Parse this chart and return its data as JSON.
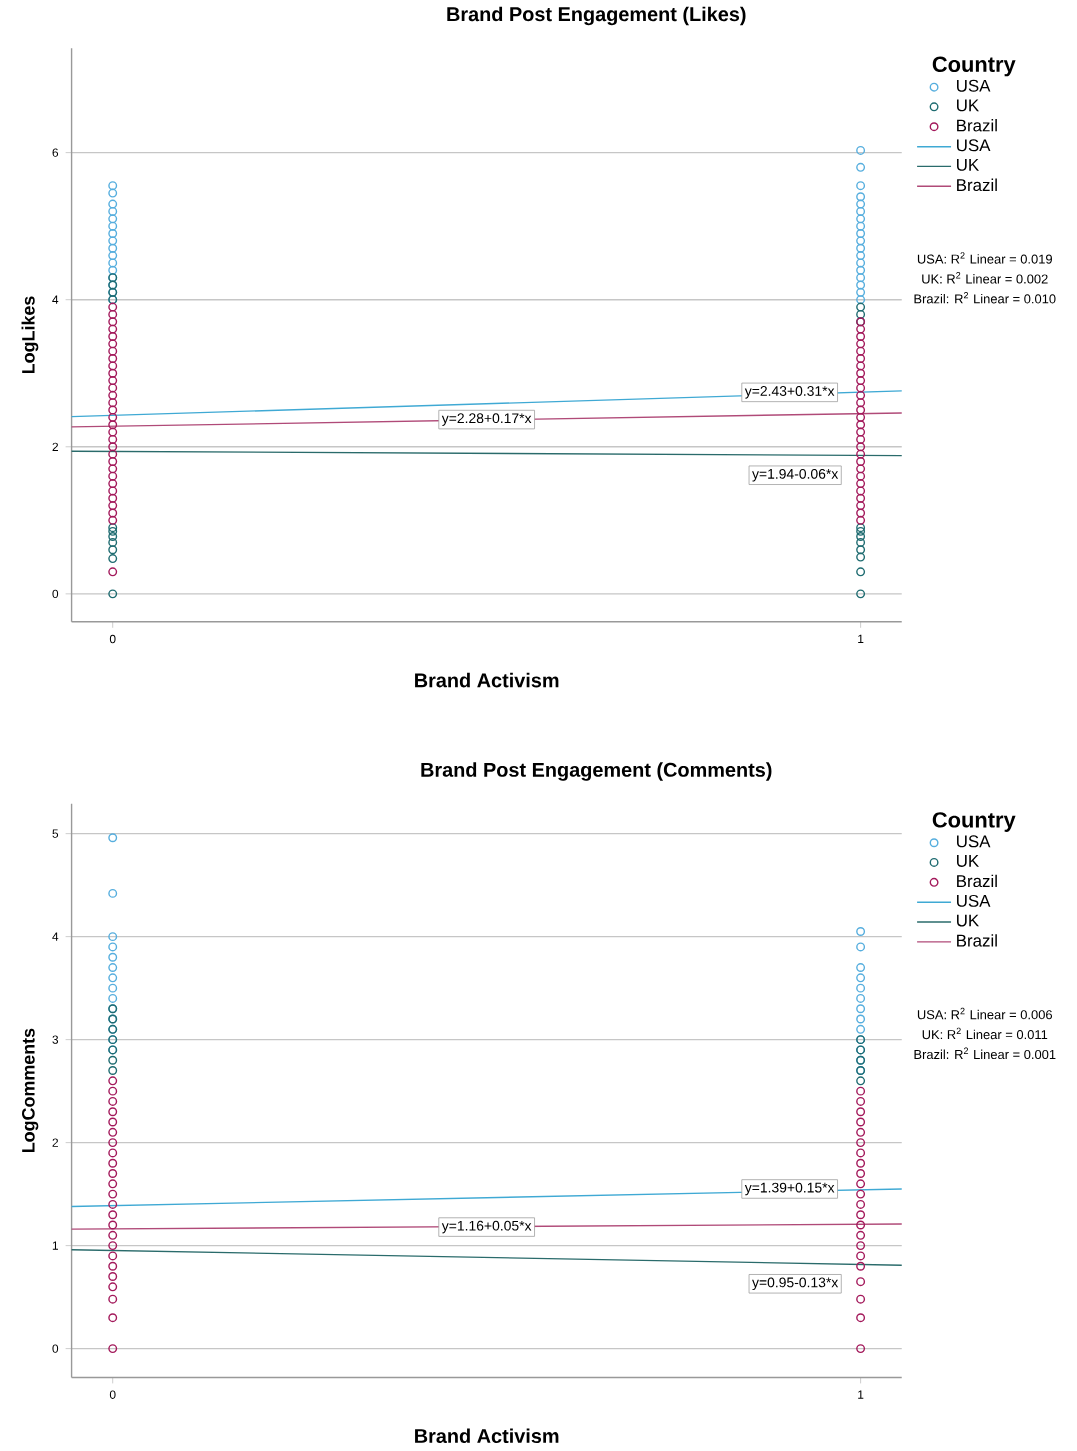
{
  "chart_data": [
    {
      "type": "scatter",
      "title": "Brand Post Engagement (Likes)",
      "xlabel": "Brand Activism",
      "ylabel": "LogLikes",
      "legend_title": "Country",
      "xlim": [
        -0.055,
        1.055
      ],
      "xticks": [
        0,
        1
      ],
      "ylim": [
        -0.38,
        7.42
      ],
      "yticks": [
        0,
        2,
        4,
        6
      ],
      "grid": "y",
      "legend": "right",
      "series": [
        {
          "name": "USA",
          "color": "#56aede",
          "x": [
            0,
            0,
            0,
            0,
            0,
            0,
            0,
            0,
            0,
            0,
            0,
            0,
            0,
            0,
            0,
            0,
            1,
            1,
            1,
            1,
            1,
            1,
            1,
            1,
            1,
            1,
            1,
            1,
            1,
            1,
            1,
            1,
            1,
            1
          ],
          "values": [
            5.55,
            5.45,
            5.3,
            5.2,
            5.1,
            5.0,
            4.9,
            4.8,
            4.7,
            4.6,
            4.5,
            4.4,
            4.3,
            4.2,
            4.1,
            4.0,
            6.03,
            5.8,
            5.55,
            5.4,
            5.3,
            5.2,
            5.1,
            5.0,
            4.9,
            4.8,
            4.7,
            4.6,
            4.5,
            4.4,
            4.3,
            4.2,
            4.1,
            4.0
          ]
        },
        {
          "name": "UK",
          "color": "#1e6b70",
          "x": [
            0,
            0,
            0,
            0,
            0,
            0,
            0,
            0,
            0,
            0,
            0,
            1,
            1,
            1,
            1,
            1,
            1,
            1,
            1,
            1,
            1,
            1
          ],
          "values": [
            4.3,
            4.2,
            4.1,
            4.0,
            0.9,
            0.85,
            0.78,
            0.7,
            0.6,
            0.48,
            0,
            3.9,
            3.8,
            3.7,
            0.9,
            0.85,
            0.78,
            0.7,
            0.6,
            0.5,
            0.3,
            0
          ]
        },
        {
          "name": "Brazil",
          "color": "#a3195b",
          "x": [
            0,
            0,
            0,
            0,
            0,
            0,
            0,
            0,
            0,
            0,
            0,
            0,
            0,
            0,
            0,
            0,
            0,
            0,
            0,
            0,
            0,
            0,
            0,
            0,
            0,
            0,
            0,
            0,
            0,
            0,
            0,
            1,
            1,
            1,
            1,
            1,
            1,
            1,
            1,
            1,
            1,
            1,
            1,
            1,
            1,
            1,
            1,
            1,
            1,
            1,
            1,
            1,
            1,
            1,
            1,
            1,
            1,
            1,
            1
          ],
          "values": [
            3.9,
            3.8,
            3.7,
            3.6,
            3.5,
            3.4,
            3.3,
            3.2,
            3.1,
            3.0,
            2.9,
            2.8,
            2.7,
            2.6,
            2.5,
            2.4,
            2.3,
            2.2,
            2.1,
            2.0,
            1.9,
            1.8,
            1.7,
            1.6,
            1.5,
            1.4,
            1.3,
            1.2,
            1.1,
            1.0,
            0.3,
            3.7,
            3.6,
            3.5,
            3.4,
            3.3,
            3.2,
            3.1,
            3.0,
            2.9,
            2.8,
            2.7,
            2.6,
            2.5,
            2.4,
            2.3,
            2.2,
            2.1,
            2.0,
            1.9,
            1.8,
            1.7,
            1.6,
            1.5,
            1.4,
            1.3,
            1.2,
            1.1,
            1.0
          ]
        },
        {
          "type": "line",
          "name": "USA",
          "color": "#3fa9d4",
          "x": [
            -0.055,
            1.055
          ],
          "values": [
            2.41,
            2.76
          ]
        },
        {
          "type": "line",
          "name": "UK",
          "color": "#2a6b6b",
          "x": [
            -0.055,
            1.055
          ],
          "values": [
            1.94,
            1.88
          ]
        },
        {
          "type": "line",
          "name": "Brazil",
          "color": "#b04a78",
          "x": [
            -0.055,
            1.055
          ],
          "values": [
            2.27,
            2.46
          ]
        }
      ],
      "annotations": [
        {
          "text": "y=2.43+0.31*x",
          "x": 0.975,
          "y": 2.74
        },
        {
          "text": "y=2.28+0.17*x",
          "x": 0.5,
          "y": 2.37
        },
        {
          "text": "y=1.94-0.06*x",
          "x": 0.98,
          "y": 1.88
        },
        "USA: R$^{2}$ Linear = 0.019",
        "UK: R$^{2}$ Linear = 0.002",
        "Brazil: R$^{2}$ Linear = 0.010"
      ]
    },
    {
      "type": "scatter",
      "title": "Brand Post Engagement (Comments)",
      "xlabel": "Brand Activism",
      "ylabel": "LogComments",
      "legend_title": "Country",
      "xlim": [
        -0.055,
        1.055
      ],
      "xticks": [
        0,
        1
      ],
      "ylim": [
        -0.28,
        5.29
      ],
      "yticks": [
        0,
        1,
        2,
        3,
        4,
        5
      ],
      "grid": "y",
      "legend": "right",
      "series": [
        {
          "name": "USA",
          "color": "#56aede",
          "x": [
            0,
            0,
            0,
            0,
            0,
            0,
            0,
            0,
            0,
            0,
            0,
            0,
            0,
            0,
            1,
            1,
            1,
            1,
            1,
            1,
            1,
            1,
            1,
            1,
            1,
            1,
            1
          ],
          "values": [
            4.96,
            4.42,
            4.0,
            3.9,
            3.8,
            3.7,
            3.6,
            3.5,
            3.4,
            3.3,
            3.2,
            3.1,
            3.0,
            2.9,
            4.05,
            3.9,
            3.7,
            3.6,
            3.5,
            3.4,
            3.3,
            3.2,
            3.1,
            3.0,
            2.9,
            2.8,
            2.7
          ]
        },
        {
          "name": "UK",
          "color": "#1e6b70",
          "x": [
            0,
            0,
            0,
            0,
            0,
            0,
            0,
            1,
            1,
            1,
            1,
            1
          ],
          "values": [
            3.3,
            3.2,
            3.1,
            3.0,
            2.9,
            2.8,
            2.7,
            3.0,
            2.9,
            2.8,
            2.7,
            2.6
          ]
        },
        {
          "name": "Brazil",
          "color": "#a3195b",
          "x": [
            0,
            0,
            0,
            0,
            0,
            0,
            0,
            0,
            0,
            0,
            0,
            0,
            0,
            0,
            0,
            0,
            0,
            0,
            0,
            0,
            0,
            0,
            0,
            0,
            1,
            1,
            1,
            1,
            1,
            1,
            1,
            1,
            1,
            1,
            1,
            1,
            1,
            1,
            1,
            1,
            1,
            1,
            1,
            1,
            1,
            1
          ],
          "values": [
            2.6,
            2.5,
            2.4,
            2.3,
            2.2,
            2.1,
            2.0,
            1.9,
            1.8,
            1.7,
            1.6,
            1.5,
            1.4,
            1.3,
            1.2,
            1.1,
            1.0,
            0.9,
            0.8,
            0.7,
            0.6,
            0.48,
            0.3,
            0.0,
            2.5,
            2.4,
            2.3,
            2.2,
            2.1,
            2.0,
            1.9,
            1.8,
            1.7,
            1.6,
            1.5,
            1.4,
            1.3,
            1.2,
            1.1,
            1.0,
            0.9,
            0.8,
            0.65,
            0.48,
            0.3,
            0.0
          ]
        },
        {
          "type": "line",
          "name": "USA",
          "color": "#3fa9d4",
          "x": [
            -0.055,
            1.055
          ],
          "values": [
            1.38,
            1.55
          ]
        },
        {
          "type": "line",
          "name": "UK",
          "color": "#2a6b6b",
          "x": [
            -0.055,
            1.055
          ],
          "values": [
            0.96,
            0.81
          ]
        },
        {
          "type": "line",
          "name": "Brazil",
          "color": "#b04a78",
          "x": [
            -0.055,
            1.055
          ],
          "values": [
            1.16,
            1.21
          ]
        }
      ],
      "annotations": [
        {
          "text": "y=1.39+0.15*x",
          "x": 0.975,
          "y": 1.55
        },
        {
          "text": "y=1.16+0.05*x",
          "x": 0.5,
          "y": 1.18
        },
        {
          "text": "y=0.95-0.13*x",
          "x": 0.98,
          "y": 0.82
        },
        "USA: R$^{2}$ Linear = 0.006",
        "UK: R$^{2}$ Linear = 0.011",
        "Brazil: R$^{2}$ Linear = 0.001"
      ]
    }
  ]
}
